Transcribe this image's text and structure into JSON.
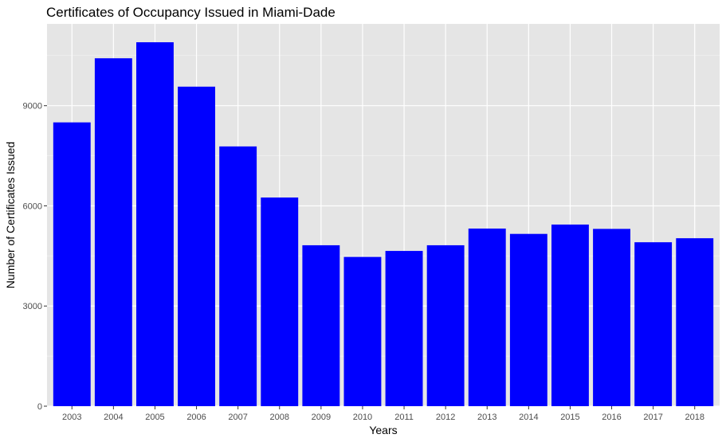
{
  "chart_data": {
    "type": "bar",
    "title": "Certificates of Occupancy Issued in Miami-Dade",
    "xlabel": "Years",
    "ylabel": "Number of Certificates Issued",
    "categories": [
      "2003",
      "2004",
      "2005",
      "2006",
      "2007",
      "2008",
      "2009",
      "2010",
      "2011",
      "2012",
      "2013",
      "2014",
      "2015",
      "2016",
      "2017",
      "2018"
    ],
    "values": [
      8500,
      10420,
      10900,
      9570,
      7780,
      6250,
      4820,
      4470,
      4650,
      4820,
      5320,
      5160,
      5440,
      5310,
      4910,
      5030
    ],
    "ylim": [
      0,
      11450
    ],
    "yticks": [
      0,
      3000,
      6000,
      9000
    ],
    "ytick_labels": [
      "0",
      "3000",
      "6000",
      "9000"
    ],
    "bar_color": "#0000ff",
    "panel_background": "#e5e5e5",
    "grid": true,
    "legend": "none"
  }
}
